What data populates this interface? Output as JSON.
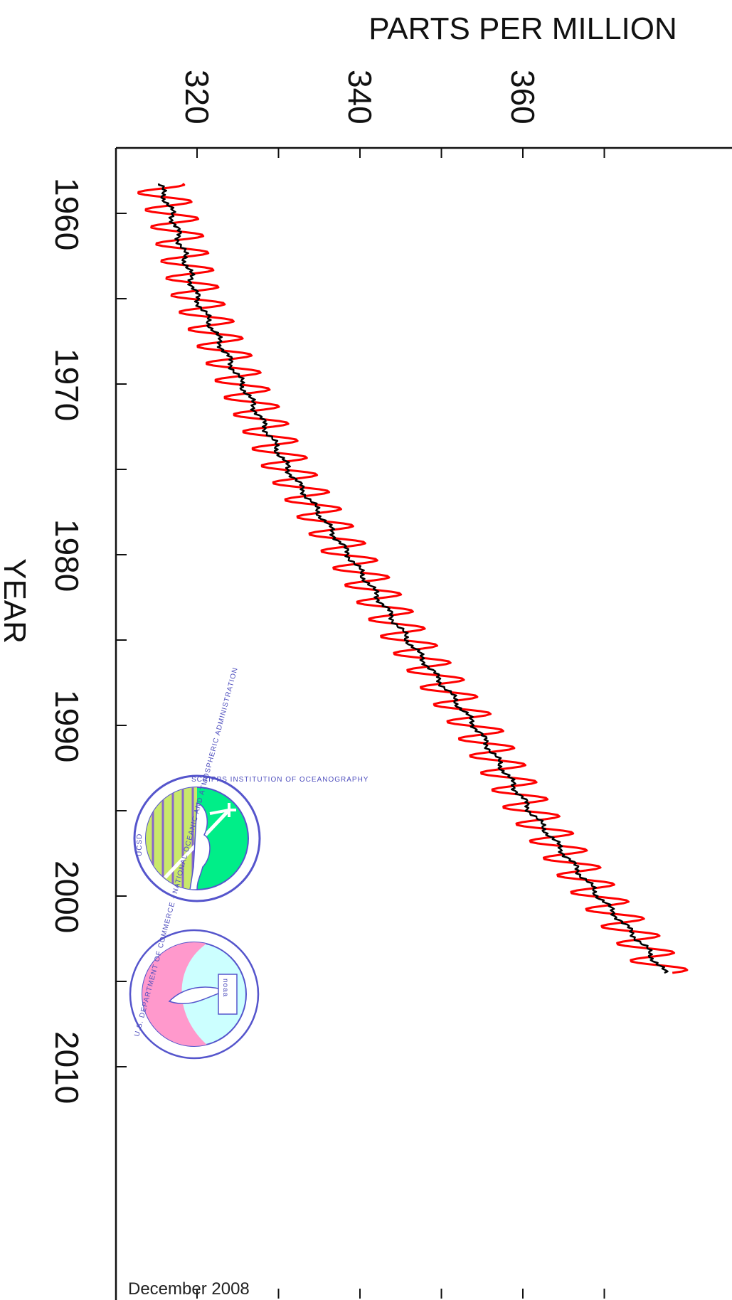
{
  "chart_data": {
    "type": "line",
    "orientation": "rotated-90-clockwise",
    "title": "",
    "xlabel": "YEAR",
    "ylabel": "PARTS PER MILLION",
    "footnote": "December 2008",
    "xlim": [
      1956.0,
      2010.2
    ],
    "ylim": [
      309.5,
      371.0
    ],
    "x_ticks": [
      1960,
      1970,
      1980,
      1990,
      2000,
      2010
    ],
    "y_ticks": [
      320,
      340,
      360
    ],
    "series": [
      {
        "color": "#ff0000",
        "style": "monthly",
        "x": [
          1958.25,
          1960,
          1965,
          1970,
          1975,
          1980,
          1985,
          1990,
          1995,
          2000,
          2003,
          2004.5
        ],
        "values": [
          315.3,
          316.9,
          320.0,
          325.5,
          331.2,
          338.6,
          345.9,
          354.1,
          360.9,
          369.3,
          375.0,
          377.4
        ]
      },
      {
        "color": "#000000",
        "style": "annual-trend",
        "x": [
          1958.25,
          1960,
          1965,
          1970,
          1975,
          1980,
          1985,
          1990,
          1995,
          2000,
          2003,
          2004.5
        ],
        "values": [
          315.3,
          316.9,
          320.0,
          325.5,
          331.2,
          338.6,
          345.9,
          354.1,
          360.9,
          369.3,
          375.0,
          377.4
        ]
      }
    ],
    "grid": false,
    "legend": "none"
  },
  "logos": {
    "scripps": {
      "name": "scripps-logo",
      "text_top": "SCRIPPS INSTITUTION OF OCEANOGRAPHY",
      "text_left": "UCSD",
      "colors": {
        "green": "#00ee88",
        "ring": "#5555cc"
      }
    },
    "noaa": {
      "name": "noaa-logo",
      "text": "U.S. DEPARTMENT OF COMMERCE · NATIONAL OCEANIC AND ATMOSPHERIC ADMINISTRATION",
      "wordmark": "noaa",
      "colors": {
        "pink": "#ff99cc",
        "cyan": "#ccffff",
        "ring": "#5555cc"
      }
    }
  }
}
